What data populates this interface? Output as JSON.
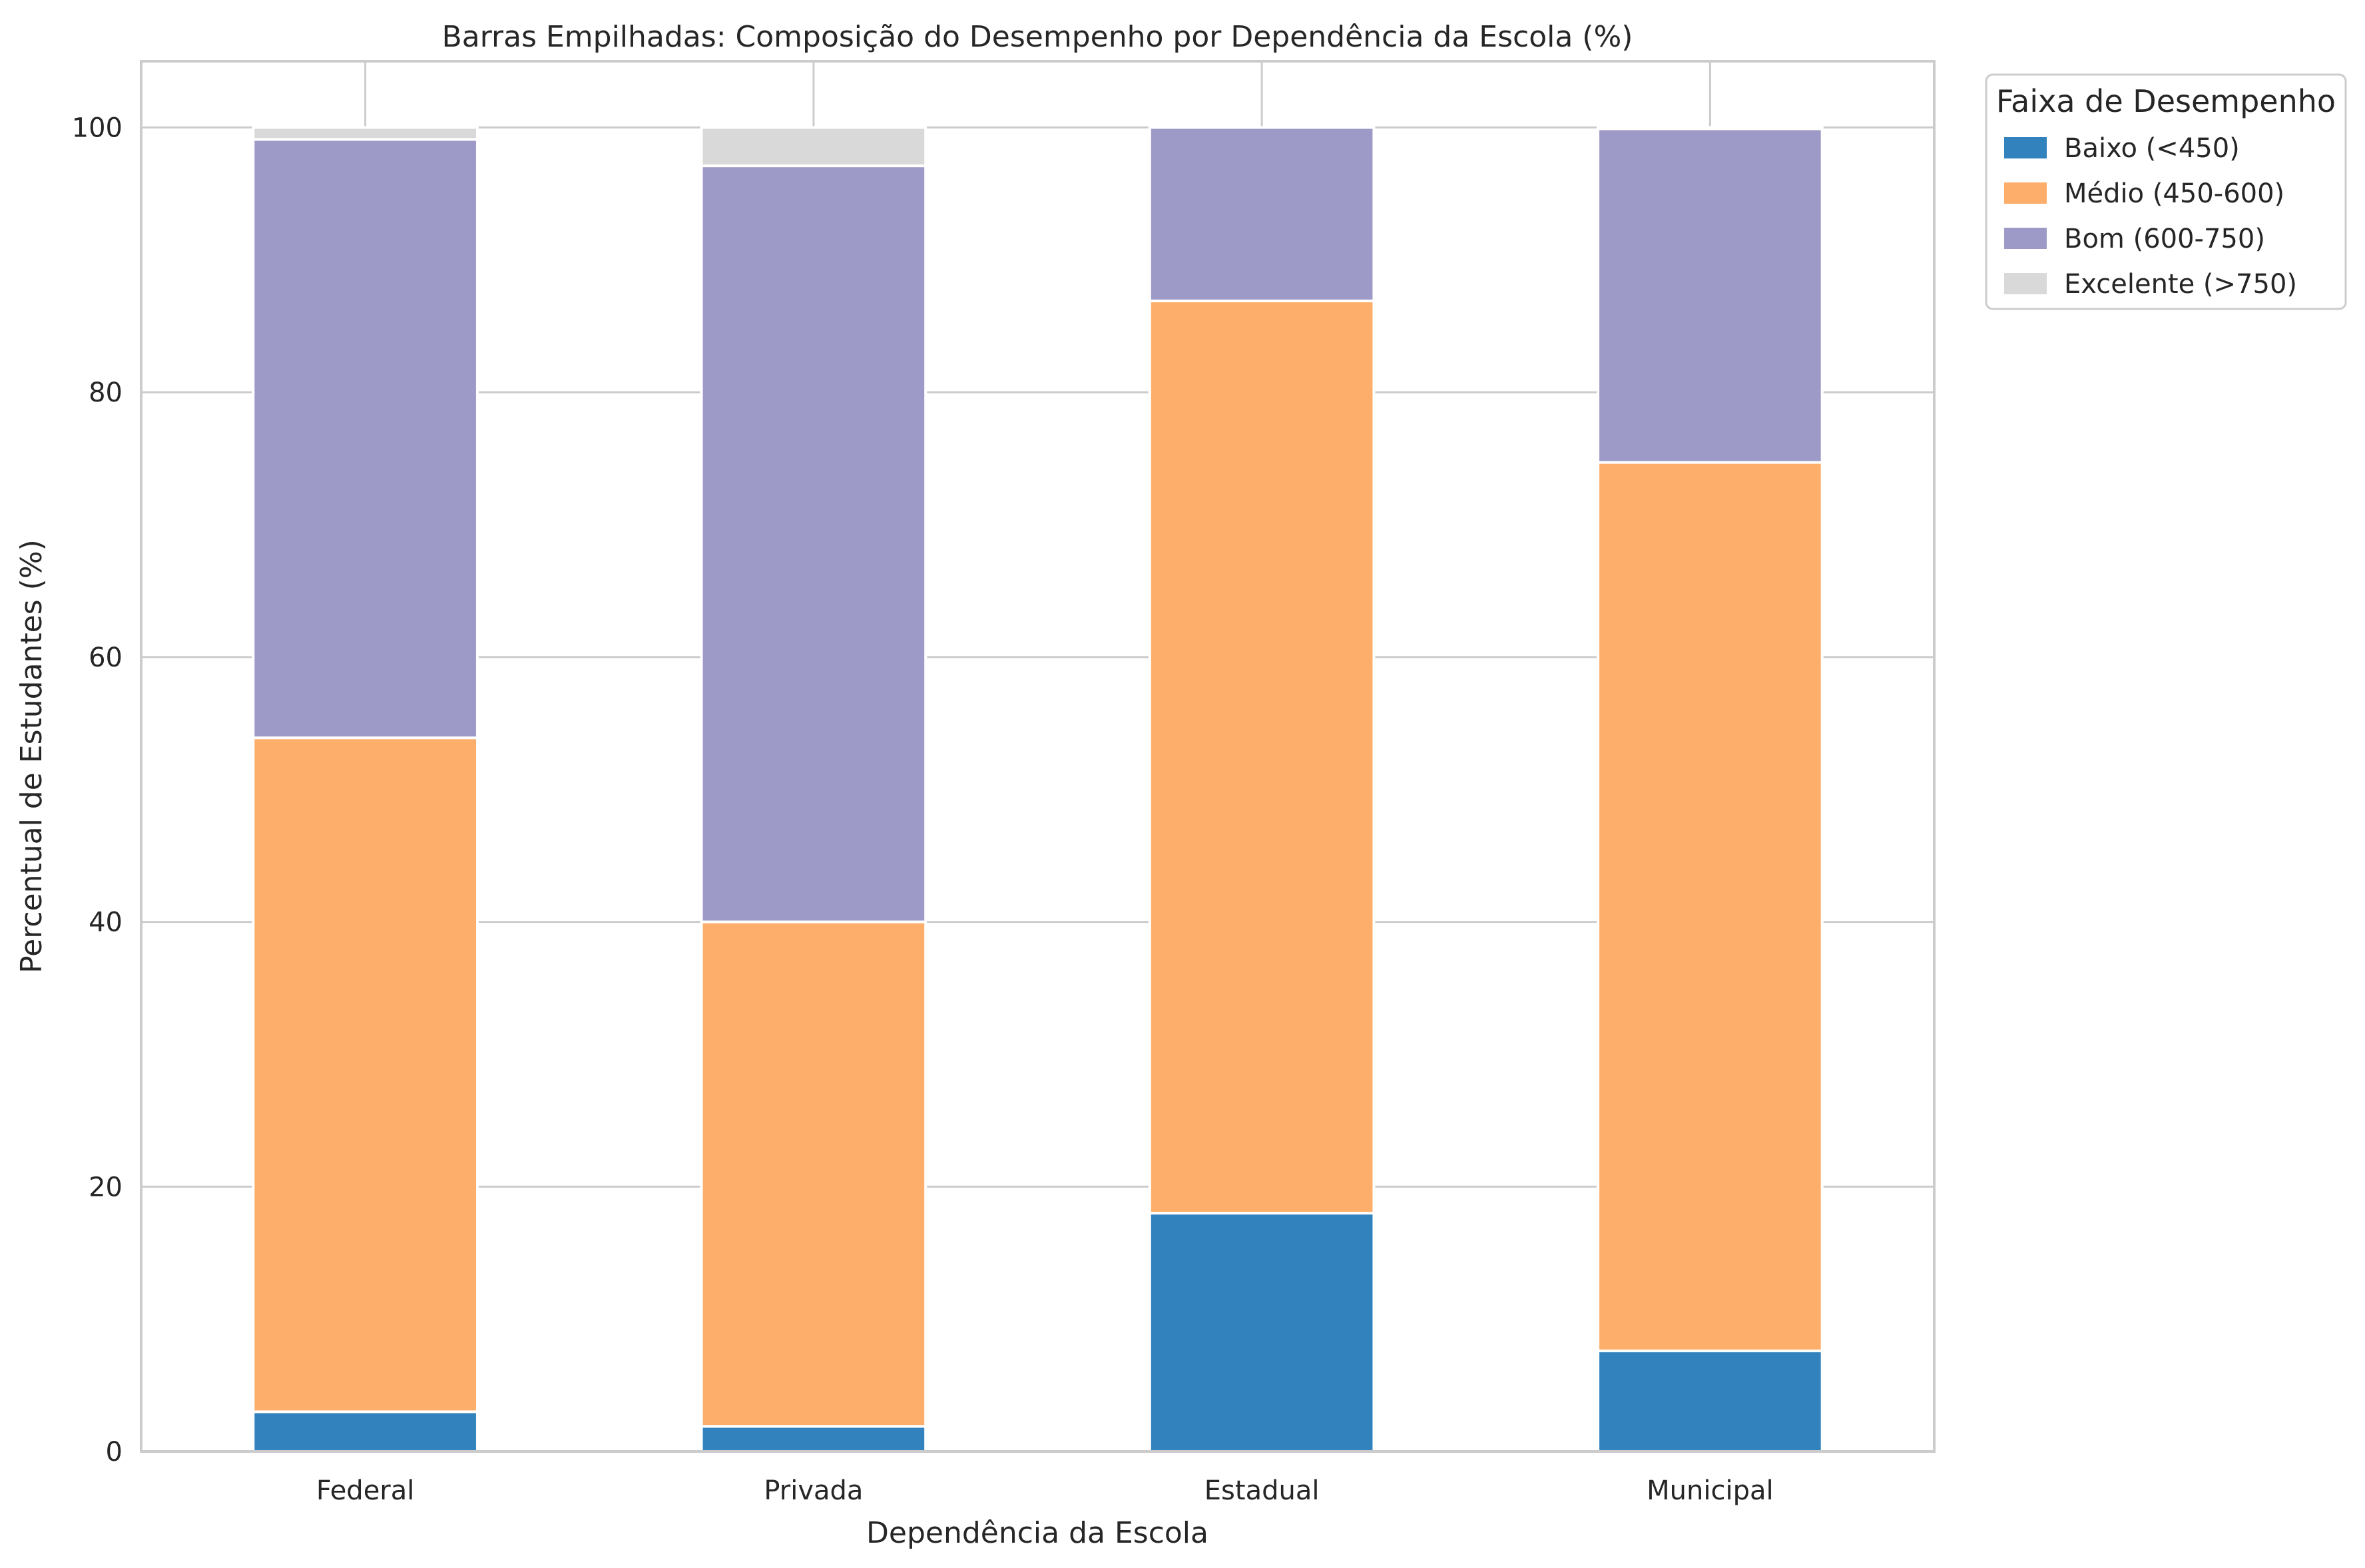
{
  "chart_data": {
    "type": "bar",
    "stacked": true,
    "title": "Barras Empilhadas: Composição do Desempenho por Dependência da Escola (%)",
    "xlabel": "Dependência da Escola",
    "ylabel": "Percentual de Estudantes (%)",
    "ylim": [
      0,
      105
    ],
    "yticks": [
      0,
      20,
      40,
      60,
      80,
      100
    ],
    "grid": true,
    "legend_position": "outside-top-right",
    "legend_title": "Faixa de Desempenho",
    "categories": [
      "Federal",
      "Privada",
      "Estadual",
      "Municipal"
    ],
    "series": [
      {
        "name": "Baixo (<450)",
        "color": "#3182bd",
        "values": [
          3.0,
          1.9,
          18.0,
          7.6
        ]
      },
      {
        "name": "Médio (450-600)",
        "color": "#fdae6b",
        "values": [
          50.9,
          38.1,
          68.9,
          67.1
        ]
      },
      {
        "name": "Bom (600-750)",
        "color": "#9e9ac8",
        "values": [
          45.2,
          57.1,
          13.1,
          25.2
        ]
      },
      {
        "name": "Excelente (>750)",
        "color": "#d9d9d9",
        "values": [
          0.9,
          2.9,
          0.0,
          0.1
        ]
      }
    ]
  }
}
